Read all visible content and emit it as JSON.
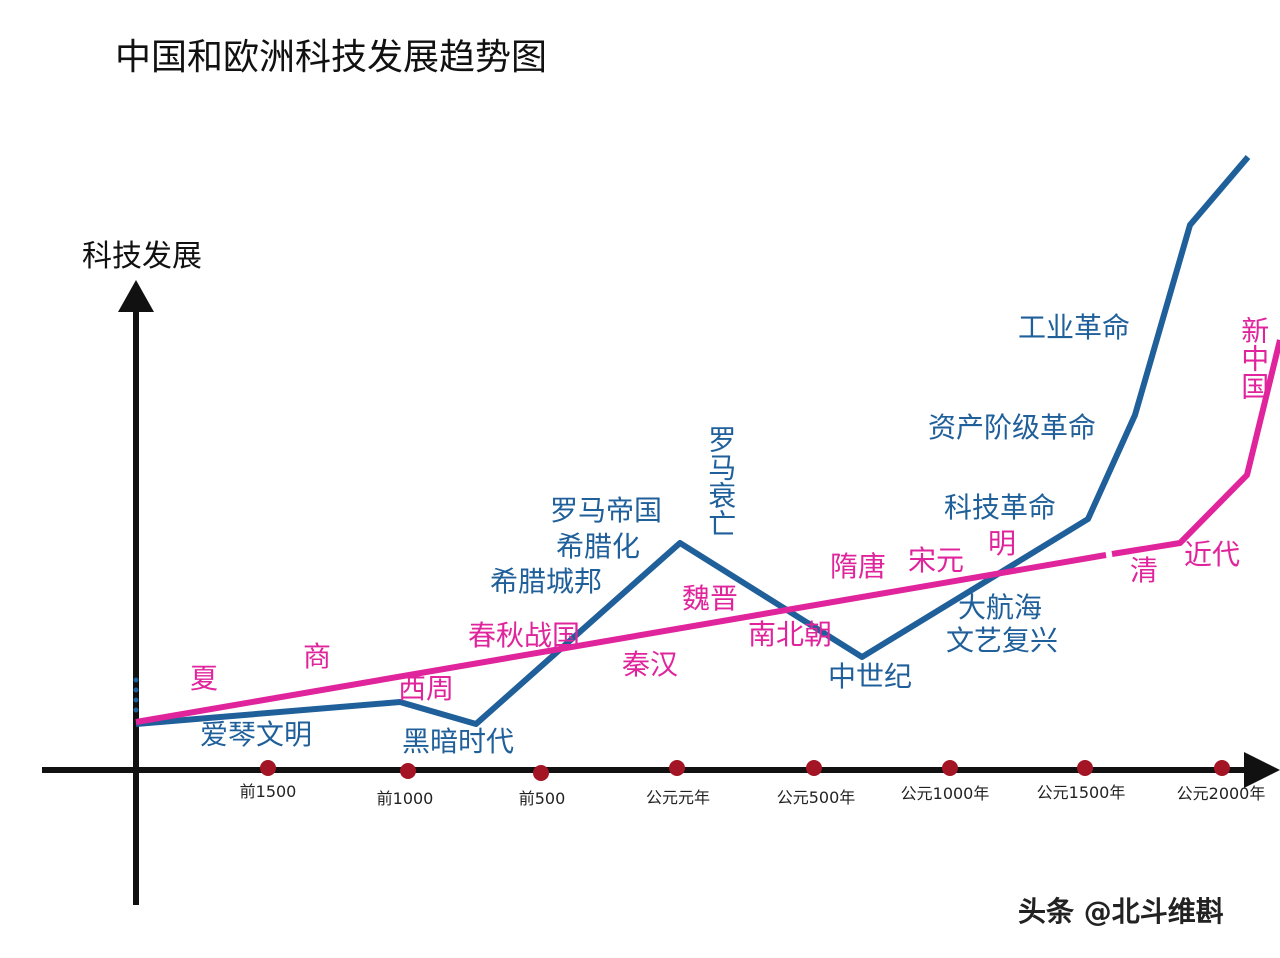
{
  "title": "中国和欧洲科技发展趋势图",
  "y_axis_label": "科技发展",
  "time_labels": [
    "前1500",
    "前1000",
    "前500",
    "公元元年",
    "公元500年",
    "公元1000年",
    "公元1500年",
    "公元2000年"
  ],
  "europe_labels": [
    "爱琴文明",
    "黑暗时代",
    "希腊城邦",
    "希腊化",
    "罗马帝国",
    "罗马衰亡",
    "中世纪",
    "大航海",
    "文艺复兴",
    "科技革命",
    "资产阶级革命",
    "工业革命"
  ],
  "china_labels": [
    "夏",
    "商",
    "西周",
    "春秋战国",
    "秦汉",
    "魏晋",
    "南北朝",
    "隋唐",
    "宋元",
    "明",
    "清",
    "近代",
    "新中国"
  ],
  "watermark": "头条 @北斗维斟"
}
